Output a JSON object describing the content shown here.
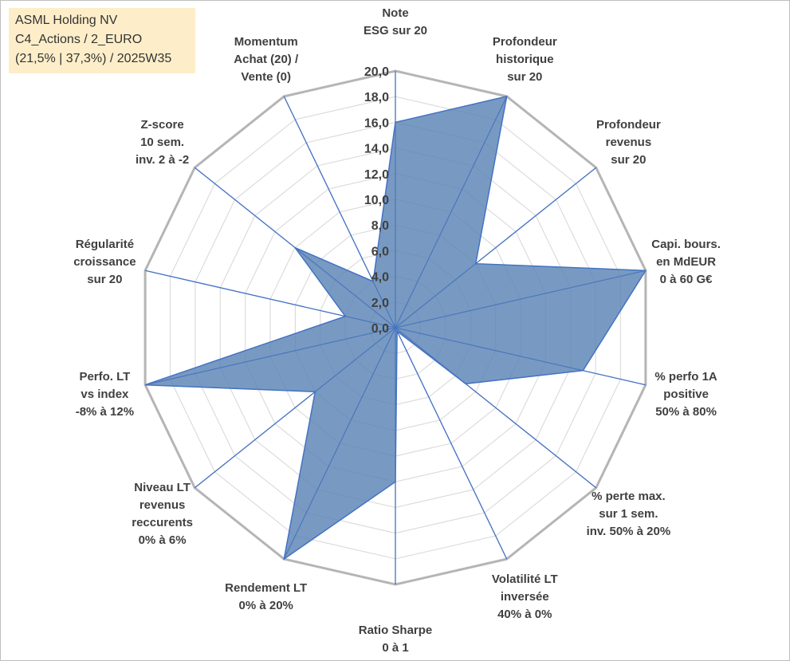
{
  "info_box": {
    "lines": [
      "ASML Holding NV",
      "C4_Actions / 2_EURO",
      "(21,5% | 37,3%) / 2025W35"
    ],
    "background": "#fdeec9"
  },
  "chart_data": {
    "type": "radar",
    "title": "",
    "grid": true,
    "rmin": 0,
    "rmax": 20,
    "tick_step": 2,
    "tick_labels": [
      "0,0",
      "2,0",
      "4,0",
      "6,0",
      "8,0",
      "10,0",
      "12,0",
      "14,0",
      "16,0",
      "18,0",
      "20,0"
    ],
    "categories": [
      [
        "Note",
        "ESG sur 20"
      ],
      [
        "Profondeur",
        "historique",
        "sur 20"
      ],
      [
        "Profondeur",
        "revenus",
        "sur 20"
      ],
      [
        "Capi. bours.",
        "en MdEUR",
        "0 à 60 G€"
      ],
      [
        "% perfo 1A",
        "positive",
        "50% à 80%"
      ],
      [
        "% perte max.",
        "sur 1 sem.",
        "inv. 50% à 20%"
      ],
      [
        "Volatilité LT",
        "inversée",
        "40% à 0%"
      ],
      [
        "Ratio Sharpe",
        "0 à 1"
      ],
      [
        "Rendement LT",
        "0% à 20%"
      ],
      [
        "Niveau LT",
        "revenus",
        "reccurents",
        "0% à 6%"
      ],
      [
        "Perfo. LT",
        "vs index",
        "-8% à 12%"
      ],
      [
        "Régularité",
        "croissance",
        "sur 20"
      ],
      [
        "Z-score",
        "10 sem.",
        "inv. 2 à -2"
      ],
      [
        "Momentum",
        "Achat (20) /",
        "Vente (0)"
      ]
    ],
    "series": [
      {
        "values": [
          16,
          20,
          8,
          20,
          15,
          7,
          0.3,
          12,
          20,
          8,
          20,
          4,
          10,
          4
        ]
      }
    ],
    "colors": {
      "fill": "#5a84b5",
      "stroke": "#4472c4",
      "grid": "#bfbfbf",
      "spokes": "#4472c4"
    }
  }
}
